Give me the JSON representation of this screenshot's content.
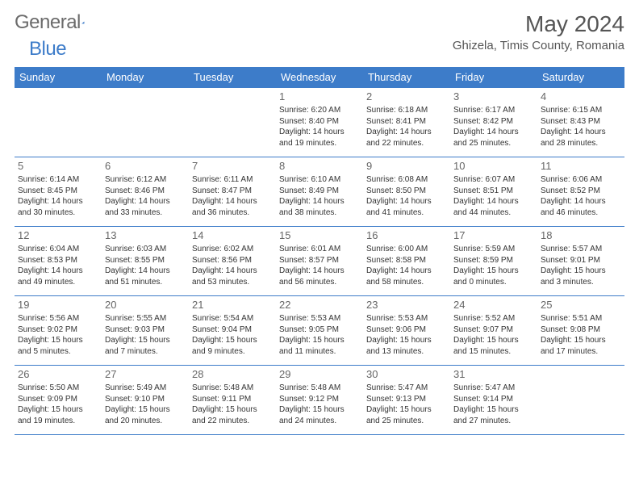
{
  "logo": {
    "text1": "General",
    "text2": "Blue"
  },
  "title": "May 2024",
  "location": "Ghizela, Timis County, Romania",
  "colors": {
    "header_bg": "#3d7cc9",
    "header_fg": "#ffffff",
    "border": "#3d7cc9",
    "logo_gray": "#6b6b6b",
    "logo_blue": "#3d7cc9"
  },
  "weekdays": [
    "Sunday",
    "Monday",
    "Tuesday",
    "Wednesday",
    "Thursday",
    "Friday",
    "Saturday"
  ],
  "weeks": [
    [
      null,
      null,
      null,
      {
        "n": "1",
        "sr": "6:20 AM",
        "ss": "8:40 PM",
        "dl": "14 hours and 19 minutes."
      },
      {
        "n": "2",
        "sr": "6:18 AM",
        "ss": "8:41 PM",
        "dl": "14 hours and 22 minutes."
      },
      {
        "n": "3",
        "sr": "6:17 AM",
        "ss": "8:42 PM",
        "dl": "14 hours and 25 minutes."
      },
      {
        "n": "4",
        "sr": "6:15 AM",
        "ss": "8:43 PM",
        "dl": "14 hours and 28 minutes."
      }
    ],
    [
      {
        "n": "5",
        "sr": "6:14 AM",
        "ss": "8:45 PM",
        "dl": "14 hours and 30 minutes."
      },
      {
        "n": "6",
        "sr": "6:12 AM",
        "ss": "8:46 PM",
        "dl": "14 hours and 33 minutes."
      },
      {
        "n": "7",
        "sr": "6:11 AM",
        "ss": "8:47 PM",
        "dl": "14 hours and 36 minutes."
      },
      {
        "n": "8",
        "sr": "6:10 AM",
        "ss": "8:49 PM",
        "dl": "14 hours and 38 minutes."
      },
      {
        "n": "9",
        "sr": "6:08 AM",
        "ss": "8:50 PM",
        "dl": "14 hours and 41 minutes."
      },
      {
        "n": "10",
        "sr": "6:07 AM",
        "ss": "8:51 PM",
        "dl": "14 hours and 44 minutes."
      },
      {
        "n": "11",
        "sr": "6:06 AM",
        "ss": "8:52 PM",
        "dl": "14 hours and 46 minutes."
      }
    ],
    [
      {
        "n": "12",
        "sr": "6:04 AM",
        "ss": "8:53 PM",
        "dl": "14 hours and 49 minutes."
      },
      {
        "n": "13",
        "sr": "6:03 AM",
        "ss": "8:55 PM",
        "dl": "14 hours and 51 minutes."
      },
      {
        "n": "14",
        "sr": "6:02 AM",
        "ss": "8:56 PM",
        "dl": "14 hours and 53 minutes."
      },
      {
        "n": "15",
        "sr": "6:01 AM",
        "ss": "8:57 PM",
        "dl": "14 hours and 56 minutes."
      },
      {
        "n": "16",
        "sr": "6:00 AM",
        "ss": "8:58 PM",
        "dl": "14 hours and 58 minutes."
      },
      {
        "n": "17",
        "sr": "5:59 AM",
        "ss": "8:59 PM",
        "dl": "15 hours and 0 minutes."
      },
      {
        "n": "18",
        "sr": "5:57 AM",
        "ss": "9:01 PM",
        "dl": "15 hours and 3 minutes."
      }
    ],
    [
      {
        "n": "19",
        "sr": "5:56 AM",
        "ss": "9:02 PM",
        "dl": "15 hours and 5 minutes."
      },
      {
        "n": "20",
        "sr": "5:55 AM",
        "ss": "9:03 PM",
        "dl": "15 hours and 7 minutes."
      },
      {
        "n": "21",
        "sr": "5:54 AM",
        "ss": "9:04 PM",
        "dl": "15 hours and 9 minutes."
      },
      {
        "n": "22",
        "sr": "5:53 AM",
        "ss": "9:05 PM",
        "dl": "15 hours and 11 minutes."
      },
      {
        "n": "23",
        "sr": "5:53 AM",
        "ss": "9:06 PM",
        "dl": "15 hours and 13 minutes."
      },
      {
        "n": "24",
        "sr": "5:52 AM",
        "ss": "9:07 PM",
        "dl": "15 hours and 15 minutes."
      },
      {
        "n": "25",
        "sr": "5:51 AM",
        "ss": "9:08 PM",
        "dl": "15 hours and 17 minutes."
      }
    ],
    [
      {
        "n": "26",
        "sr": "5:50 AM",
        "ss": "9:09 PM",
        "dl": "15 hours and 19 minutes."
      },
      {
        "n": "27",
        "sr": "5:49 AM",
        "ss": "9:10 PM",
        "dl": "15 hours and 20 minutes."
      },
      {
        "n": "28",
        "sr": "5:48 AM",
        "ss": "9:11 PM",
        "dl": "15 hours and 22 minutes."
      },
      {
        "n": "29",
        "sr": "5:48 AM",
        "ss": "9:12 PM",
        "dl": "15 hours and 24 minutes."
      },
      {
        "n": "30",
        "sr": "5:47 AM",
        "ss": "9:13 PM",
        "dl": "15 hours and 25 minutes."
      },
      {
        "n": "31",
        "sr": "5:47 AM",
        "ss": "9:14 PM",
        "dl": "15 hours and 27 minutes."
      },
      null
    ]
  ],
  "labels": {
    "sunrise": "Sunrise:",
    "sunset": "Sunset:",
    "daylight": "Daylight:"
  }
}
